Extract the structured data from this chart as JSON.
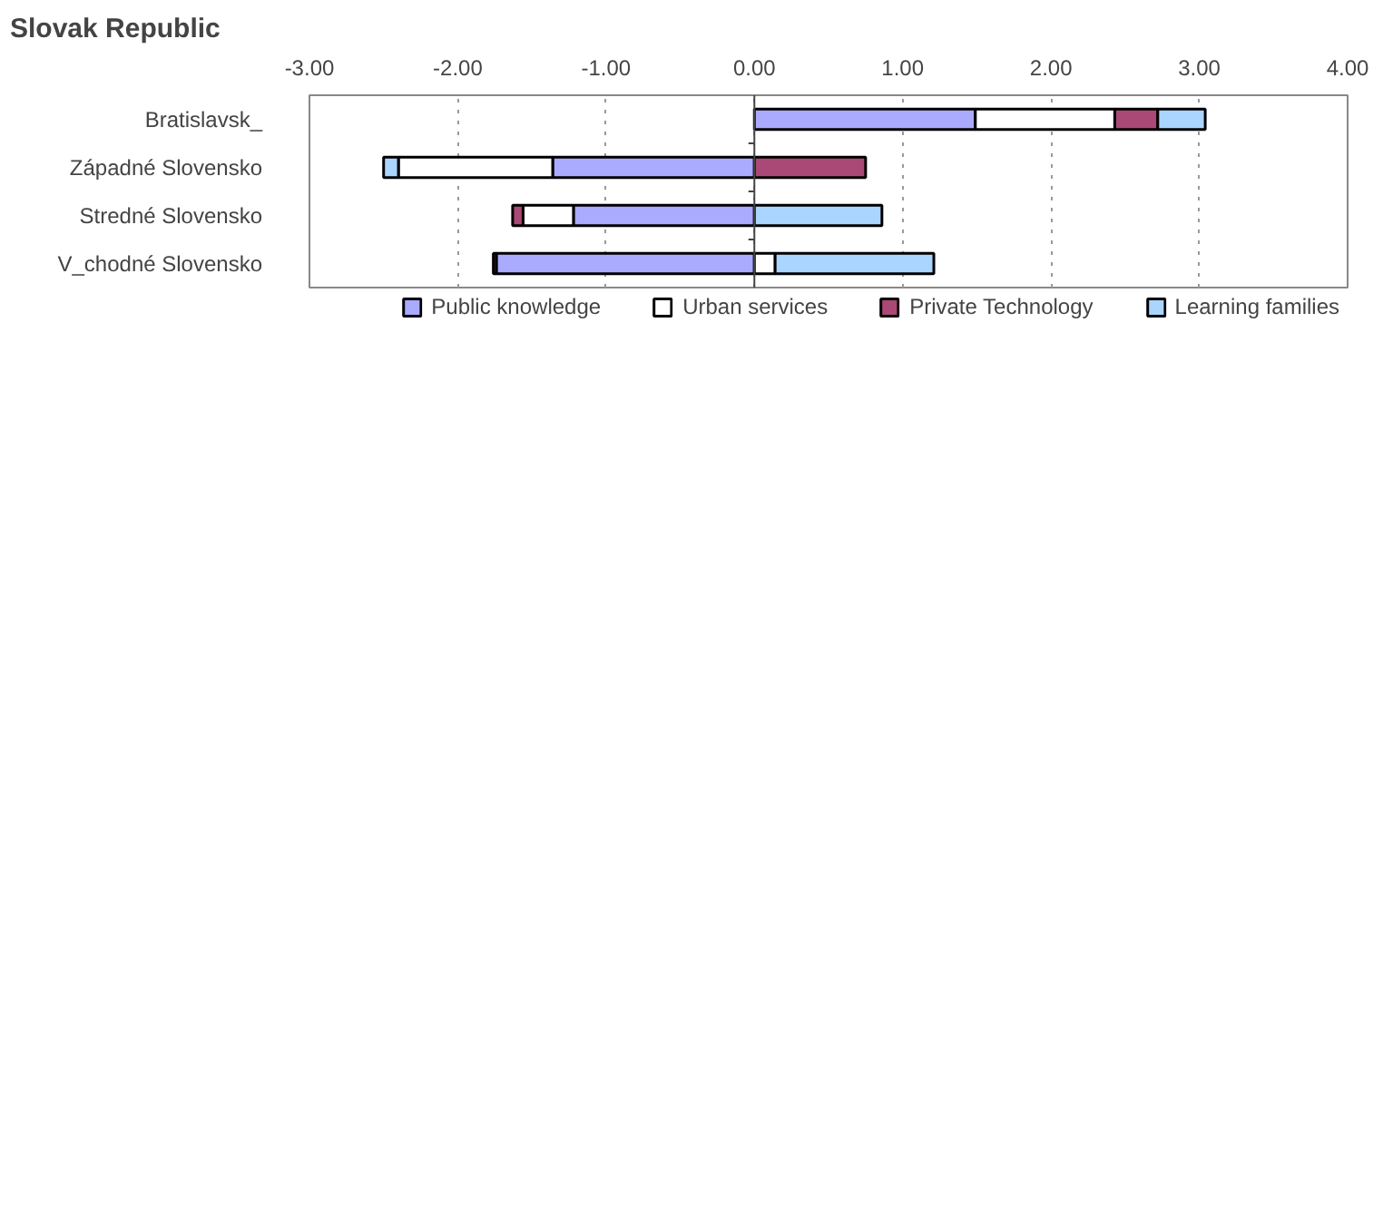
{
  "chart_data": {
    "type": "bar",
    "title": "Slovak Republic",
    "orientation": "horizontal",
    "stacked": true,
    "categories": [
      "Bratislavsk_",
      "Západné Slovensko",
      "Stredné Slovensko",
      "V_chodné Slovensko"
    ],
    "series": [
      {
        "name": "Public knowledge",
        "color": "#aaaaff",
        "values": [
          1.49,
          -1.36,
          -1.22,
          -1.74
        ]
      },
      {
        "name": "Urban services",
        "color": "#ffffff",
        "values": [
          0.94,
          -1.04,
          -0.34,
          0.14
        ]
      },
      {
        "name": "Private Technology",
        "color": "#aa4975",
        "values": [
          0.29,
          0.75,
          -0.07,
          -0.02
        ]
      },
      {
        "name": "Learning families",
        "color": "#aad5ff",
        "values": [
          0.32,
          -0.1,
          0.86,
          1.07
        ]
      }
    ],
    "xlim": [
      -3,
      4
    ],
    "xticks": [
      {
        "value": -3,
        "label": "-3.00"
      },
      {
        "value": -2,
        "label": "-2.00"
      },
      {
        "value": -1,
        "label": "-1.00"
      },
      {
        "value": 0,
        "label": "0.00"
      },
      {
        "value": 1,
        "label": "1.00"
      },
      {
        "value": 2,
        "label": "2.00"
      },
      {
        "value": 3,
        "label": "3.00"
      },
      {
        "value": 4,
        "label": "4.00"
      }
    ],
    "grid": "x",
    "legend": "bottom"
  }
}
